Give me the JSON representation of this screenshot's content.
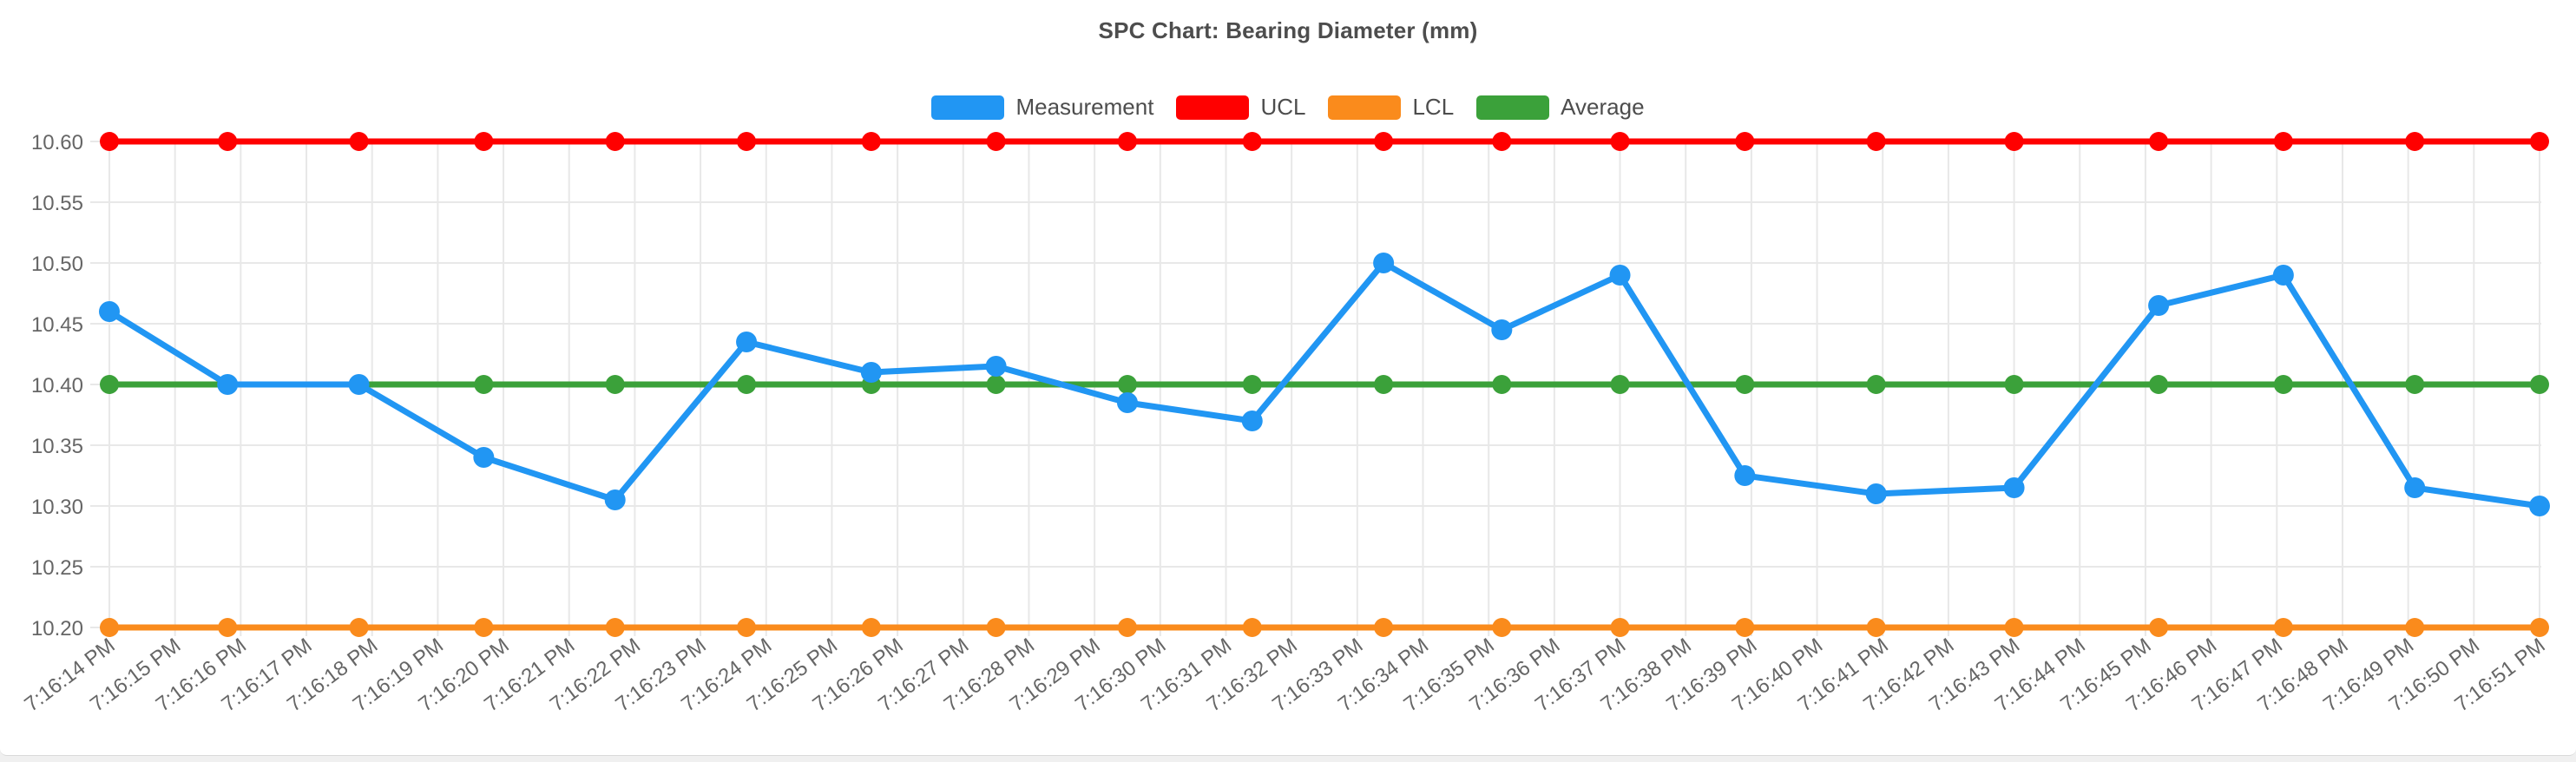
{
  "style": {
    "page_background": "#f0f0f0",
    "card_background": "#ffffff",
    "card_border": "#d9d9d9",
    "title_color": "#4d4d4d",
    "tick_label_color": "#666666",
    "grid_color": "#e8e8e8",
    "legend_label_color": "#4d4d4d"
  },
  "chart_data": {
    "type": "line",
    "title": "SPC Chart: Bearing Diameter (mm)",
    "legend_position": "top",
    "grid": true,
    "x_axis": {
      "unit": "time",
      "tick_labels": [
        "7:16:14 PM",
        "7:16:15 PM",
        "7:16:16 PM",
        "7:16:17 PM",
        "7:16:18 PM",
        "7:16:19 PM",
        "7:16:20 PM",
        "7:16:21 PM",
        "7:16:22 PM",
        "7:16:23 PM",
        "7:16:24 PM",
        "7:16:25 PM",
        "7:16:26 PM",
        "7:16:27 PM",
        "7:16:28 PM",
        "7:16:29 PM",
        "7:16:30 PM",
        "7:16:31 PM",
        "7:16:32 PM",
        "7:16:33 PM",
        "7:16:34 PM",
        "7:16:35 PM",
        "7:16:36 PM",
        "7:16:37 PM",
        "7:16:38 PM",
        "7:16:39 PM",
        "7:16:40 PM",
        "7:16:41 PM",
        "7:16:42 PM",
        "7:16:43 PM",
        "7:16:44 PM",
        "7:16:45 PM",
        "7:16:46 PM",
        "7:16:47 PM",
        "7:16:48 PM",
        "7:16:49 PM",
        "7:16:50 PM",
        "7:16:51 PM"
      ],
      "label_rotation_deg": -37
    },
    "y_axis": {
      "min": 10.2,
      "max": 10.6,
      "step": 0.05,
      "tick_labels": [
        "10.60",
        "10.55",
        "10.50",
        "10.45",
        "10.40",
        "10.35",
        "10.30",
        "10.25",
        "10.20"
      ]
    },
    "series": [
      {
        "name": "Measurement",
        "color": "#2196F3",
        "marker_radius": 12,
        "points": [
          {
            "t": 14.0,
            "v": 10.46
          },
          {
            "t": 15.8,
            "v": 10.4
          },
          {
            "t": 17.8,
            "v": 10.4
          },
          {
            "t": 19.7,
            "v": 10.34
          },
          {
            "t": 21.7,
            "v": 10.305
          },
          {
            "t": 23.7,
            "v": 10.435
          },
          {
            "t": 25.6,
            "v": 10.41
          },
          {
            "t": 27.5,
            "v": 10.415
          },
          {
            "t": 29.5,
            "v": 10.385
          },
          {
            "t": 31.4,
            "v": 10.37
          },
          {
            "t": 33.4,
            "v": 10.5
          },
          {
            "t": 35.2,
            "v": 10.445
          },
          {
            "t": 37.0,
            "v": 10.49
          },
          {
            "t": 38.9,
            "v": 10.325
          },
          {
            "t": 40.9,
            "v": 10.31
          },
          {
            "t": 43.0,
            "v": 10.315
          },
          {
            "t": 45.2,
            "v": 10.465
          },
          {
            "t": 47.1,
            "v": 10.49
          },
          {
            "t": 49.1,
            "v": 10.315
          },
          {
            "t": 51.0,
            "v": 10.3
          }
        ],
        "t_note": "seconds after 7:16:00 PM"
      },
      {
        "name": "UCL",
        "color": "#FF0000",
        "constant_value": 10.6,
        "marker_radius": 11
      },
      {
        "name": "LCL",
        "color": "#FA8B1C",
        "constant_value": 10.2,
        "marker_radius": 11
      },
      {
        "name": "Average",
        "color": "#3BA13A",
        "constant_value": 10.4,
        "marker_radius": 11
      }
    ]
  }
}
